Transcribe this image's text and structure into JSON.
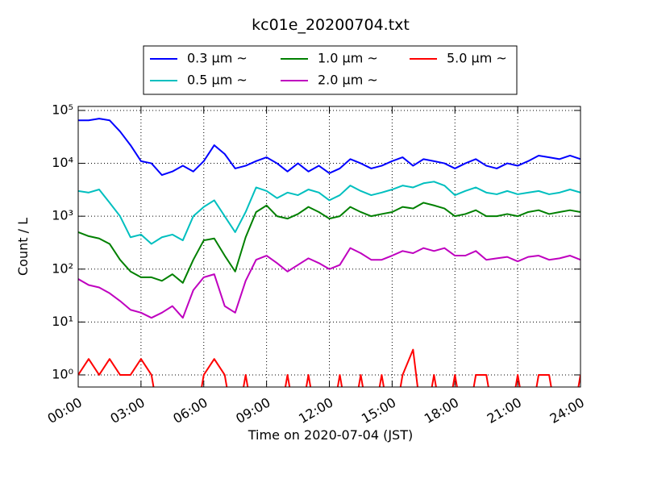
{
  "chart_data": {
    "type": "line",
    "title": "kc01e_20200704.txt",
    "x_label": "Time on 2020-07-04 (JST)",
    "y_label": "Count / L",
    "log_y": true,
    "grid": true,
    "legend": "top",
    "x": [
      0,
      0.5,
      1,
      1.5,
      2,
      2.5,
      3,
      3.5,
      4,
      4.5,
      5,
      5.5,
      6,
      6.5,
      7,
      7.5,
      8,
      8.5,
      9,
      9.5,
      10,
      10.5,
      11,
      11.5,
      12,
      12.5,
      13,
      13.5,
      14,
      14.5,
      15,
      15.5,
      16,
      16.5,
      17,
      17.5,
      18,
      18.5,
      19,
      19.5,
      20,
      20.5,
      21,
      21.5,
      22,
      22.5,
      23,
      23.5,
      24
    ],
    "xlim": [
      0,
      24
    ],
    "xticks": [
      {
        "value": 0,
        "label": "00:00"
      },
      {
        "value": 3,
        "label": "03:00"
      },
      {
        "value": 6,
        "label": "06:00"
      },
      {
        "value": 9,
        "label": "09:00"
      },
      {
        "value": 12,
        "label": "12:00"
      },
      {
        "value": 15,
        "label": "15:00"
      },
      {
        "value": 18,
        "label": "18:00"
      },
      {
        "value": 21,
        "label": "21:00"
      },
      {
        "value": 24,
        "label": "24:00"
      }
    ],
    "ylim": [
      0.59,
      119000
    ],
    "yticks": [
      {
        "value": 1,
        "label": "10⁰"
      },
      {
        "value": 10,
        "label": "10¹"
      },
      {
        "value": 100,
        "label": "10²"
      },
      {
        "value": 1000,
        "label": "10³"
      },
      {
        "value": 10000,
        "label": "10⁴"
      },
      {
        "value": 100000,
        "label": "10⁵"
      }
    ],
    "series": [
      {
        "name": "0.3 μm ~",
        "color": "#0000ff",
        "values": [
          65000,
          65000,
          70000,
          65000,
          40000,
          22000,
          11000,
          10000,
          6000,
          7000,
          9000,
          7000,
          11000,
          22000,
          15000,
          8000,
          9000,
          11000,
          13000,
          10000,
          7000,
          10000,
          7000,
          9000,
          6500,
          8000,
          12000,
          10000,
          8000,
          9000,
          11000,
          13000,
          9000,
          12000,
          11000,
          10000,
          8000,
          10000,
          12000,
          9000,
          8000,
          10000,
          9000,
          11000,
          14000,
          13000,
          12000,
          14000,
          12000
        ]
      },
      {
        "name": "0.5 μm ~",
        "color": "#00bfbf",
        "values": [
          3000,
          2800,
          3200,
          1800,
          1000,
          400,
          450,
          300,
          400,
          450,
          350,
          1000,
          1500,
          2000,
          1000,
          500,
          1200,
          3500,
          3000,
          2200,
          2800,
          2500,
          3200,
          2800,
          2000,
          2500,
          3800,
          3000,
          2500,
          2800,
          3200,
          3800,
          3500,
          4200,
          4500,
          3800,
          2500,
          3000,
          3500,
          2800,
          2600,
          3000,
          2600,
          2800,
          3000,
          2600,
          2800,
          3200,
          2800
        ]
      },
      {
        "name": "1.0 μm ~",
        "color": "#008000",
        "values": [
          500,
          420,
          380,
          300,
          150,
          90,
          70,
          70,
          60,
          80,
          55,
          150,
          350,
          380,
          180,
          90,
          400,
          1200,
          1600,
          1000,
          900,
          1100,
          1500,
          1200,
          900,
          1000,
          1500,
          1200,
          1000,
          1100,
          1200,
          1500,
          1400,
          1800,
          1600,
          1400,
          1000,
          1100,
          1300,
          1000,
          1000,
          1100,
          1000,
          1200,
          1300,
          1100,
          1200,
          1300,
          1200
        ]
      },
      {
        "name": "2.0 μm ~",
        "color": "#bf00bf",
        "values": [
          65,
          50,
          45,
          35,
          25,
          17,
          15,
          12,
          15,
          20,
          12,
          40,
          70,
          80,
          20,
          15,
          60,
          150,
          180,
          130,
          90,
          120,
          160,
          130,
          100,
          120,
          250,
          200,
          150,
          150,
          180,
          220,
          200,
          250,
          220,
          250,
          180,
          180,
          220,
          150,
          160,
          170,
          140,
          170,
          180,
          150,
          160,
          180,
          150
        ]
      },
      {
        "name": "5.0 μm ~",
        "color": "#ff0000",
        "values": [
          1,
          2,
          1,
          2,
          1,
          1,
          2,
          1,
          0,
          0,
          0,
          0,
          1,
          2,
          1,
          0,
          1,
          0,
          0,
          0,
          1,
          0,
          1,
          0,
          0,
          1,
          0,
          1,
          0,
          1,
          0,
          1,
          3,
          0,
          1,
          0,
          1,
          0,
          1,
          1,
          0,
          0,
          1,
          0,
          1,
          1,
          0,
          0,
          1
        ]
      }
    ]
  }
}
